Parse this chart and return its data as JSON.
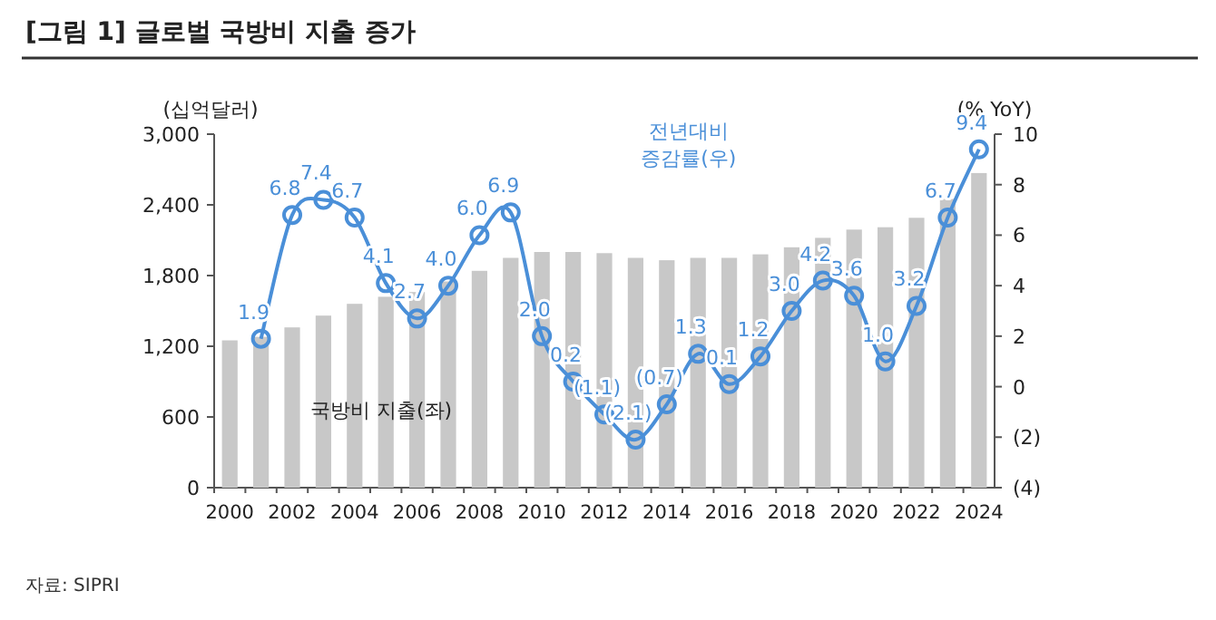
{
  "chart_data": {
    "type": "bar",
    "title": "[그림 1] 글로벌 국방비 지출 증가",
    "ylabel": "(십억달러)",
    "y2label": "(% YoY)",
    "categories": [
      "2000",
      null,
      "2002",
      null,
      "2004",
      null,
      "2006",
      null,
      "2008",
      null,
      "2010",
      null,
      "2012",
      null,
      "2014",
      null,
      "2016",
      null,
      "2018",
      null,
      "2020",
      null,
      "2022",
      null,
      "2024"
    ],
    "series": [
      {
        "name": "국방비 지출(좌)",
        "color": "#c8c8c8",
        "values": [
          1250,
          1280,
          1360,
          1460,
          1560,
          1620,
          1660,
          1750,
          1840,
          1950,
          2000,
          2000,
          1990,
          1950,
          1930,
          1950,
          1950,
          1980,
          2040,
          2120,
          2190,
          2210,
          2290,
          2450,
          2670
        ]
      },
      {
        "name": "전년대비 증감률(우)",
        "type": "line",
        "axis": "y2",
        "color": "#4a8fd8",
        "values": [
          null,
          1.9,
          6.8,
          7.4,
          6.7,
          4.1,
          2.7,
          4.0,
          6.0,
          6.9,
          2.0,
          0.2,
          -1.1,
          -2.1,
          -0.7,
          1.3,
          0.1,
          1.2,
          3.0,
          4.2,
          3.6,
          1.0,
          3.2,
          6.7,
          9.4
        ],
        "value_labels": [
          null,
          "1.9",
          "6.8",
          "7.4",
          "6.7",
          "4.1",
          "2.7",
          "4.0",
          "6.0",
          "6.9",
          "2.0",
          "0.2",
          "(1.1)",
          "(2.1)",
          "(0.7)",
          "1.3",
          "0.1",
          "1.2",
          "3.0",
          "4.2",
          "3.6",
          "1.0",
          "3.2",
          "6.7",
          "9.4"
        ]
      }
    ],
    "ylim": [
      0,
      3000
    ],
    "yticks": [
      0,
      600,
      {
        "value": 1200,
        "label": "1,200"
      },
      {
        "value": 1800,
        "label": "1,800"
      },
      {
        "value": 2400,
        "label": "2,400"
      },
      {
        "value": 3000,
        "label": "3,000"
      }
    ],
    "y2lim": [
      -4,
      10
    ],
    "y2ticks": [
      {
        "value": -4,
        "label": "(4)"
      },
      {
        "value": -2,
        "label": "(2)"
      },
      0,
      2,
      4,
      6,
      8,
      10
    ],
    "marker": "circle",
    "grid": false,
    "annotations": [
      "자료: SIPRI"
    ]
  }
}
